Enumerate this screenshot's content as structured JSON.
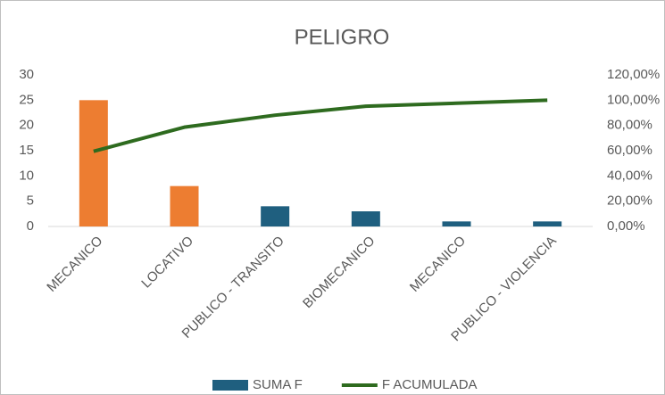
{
  "chart_data": {
    "type": "bar_line",
    "title": "PELIGRO",
    "categories": [
      "MECANICO",
      "LOCATIVO",
      "PUBLICO - TRANSITO",
      "BIOMECANICO",
      "MECANICO",
      "PUBLICO - VIOLENCIA"
    ],
    "series": [
      {
        "name": "SUMA F",
        "color": "#1f5f7f",
        "colors": [
          "#ed7d31",
          "#ed7d31",
          "#1f5f7f",
          "#1f5f7f",
          "#1f5f7f",
          "#1f5f7f"
        ],
        "values": [
          25,
          8,
          4,
          3,
          1,
          1
        ]
      },
      {
        "name": "F ACUMULADA",
        "color": "#2e6b1f",
        "axis": "y2",
        "values": [
          59.5,
          78.6,
          88.1,
          95.2,
          97.6,
          100
        ]
      }
    ],
    "ylim": [
      0,
      30
    ],
    "yticks": [
      0,
      5,
      10,
      15,
      20,
      25,
      30
    ],
    "y2lim": [
      0,
      120
    ],
    "y2ticks": [
      {
        "value": 0,
        "label": "0,00%"
      },
      {
        "value": 20,
        "label": "20,00%"
      },
      {
        "value": 40,
        "label": "40,00%"
      },
      {
        "value": 60,
        "label": "60,00%"
      },
      {
        "value": 80,
        "label": "80,00%"
      },
      {
        "value": 100,
        "label": "100,00%"
      },
      {
        "value": 120,
        "label": "120,00%"
      }
    ],
    "grid": false,
    "legend": "bottom"
  }
}
